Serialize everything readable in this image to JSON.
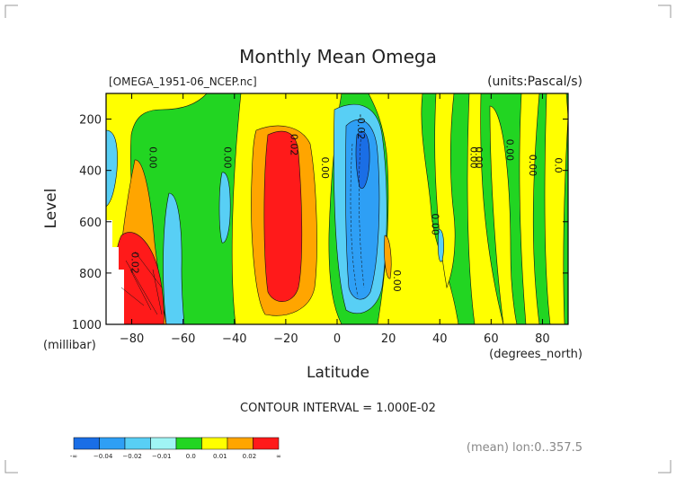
{
  "chart_data": {
    "type": "heatmap",
    "title": "Monthly Mean Omega",
    "file_label": "[OMEGA_1951-06_NCEP.nc]",
    "units_label": "(units:Pascal/s)",
    "xlabel": "Latitude",
    "x_units": "(degrees_north)",
    "ylabel": "Level",
    "y_units": "(millibar)",
    "xlim": [
      -90,
      90
    ],
    "ylim": [
      1000,
      100
    ],
    "x_ticks": [
      -80,
      -60,
      -40,
      -20,
      0,
      20,
      40,
      60,
      80
    ],
    "y_ticks": [
      200,
      400,
      600,
      800,
      1000
    ],
    "contour_interval_label": "CONTOUR INTERVAL = 1.000E-02",
    "footer_label": "(mean) lon:0..357.5",
    "colorbar": {
      "tick_labels": [
        "-∞",
        "−0.04",
        "−0.02",
        "−0.01",
        "0.0",
        "0.01",
        "0.02",
        "∞"
      ],
      "colors": [
        "#1a6ee6",
        "#2e9ff5",
        "#58cff5",
        "#a0f5f5",
        "#22d522",
        "#ffff00",
        "#ffa500",
        "#ff1a1a"
      ]
    },
    "contour_labels": [
      {
        "text": "0.00",
        "x": -73,
        "y": 350
      },
      {
        "text": "0.00",
        "x": -44,
        "y": 350
      },
      {
        "text": "0.02",
        "x": -18,
        "y": 300
      },
      {
        "text": "0.00",
        "x": -6,
        "y": 390
      },
      {
        "text": "-0.02",
        "x": 8,
        "y": 230
      },
      {
        "text": "0.00",
        "x": 22,
        "y": 830
      },
      {
        "text": "0.00",
        "x": 37,
        "y": 610
      },
      {
        "text": "0.00",
        "x": 52,
        "y": 350
      },
      {
        "text": "0.00",
        "x": 54,
        "y": 350
      },
      {
        "text": "0.00",
        "x": 66,
        "y": 320
      },
      {
        "text": "0.00",
        "x": 75,
        "y": 380
      },
      {
        "text": "0.0",
        "x": 85,
        "y": 380
      },
      {
        "text": "0.02",
        "x": -80,
        "y": 760
      }
    ]
  }
}
